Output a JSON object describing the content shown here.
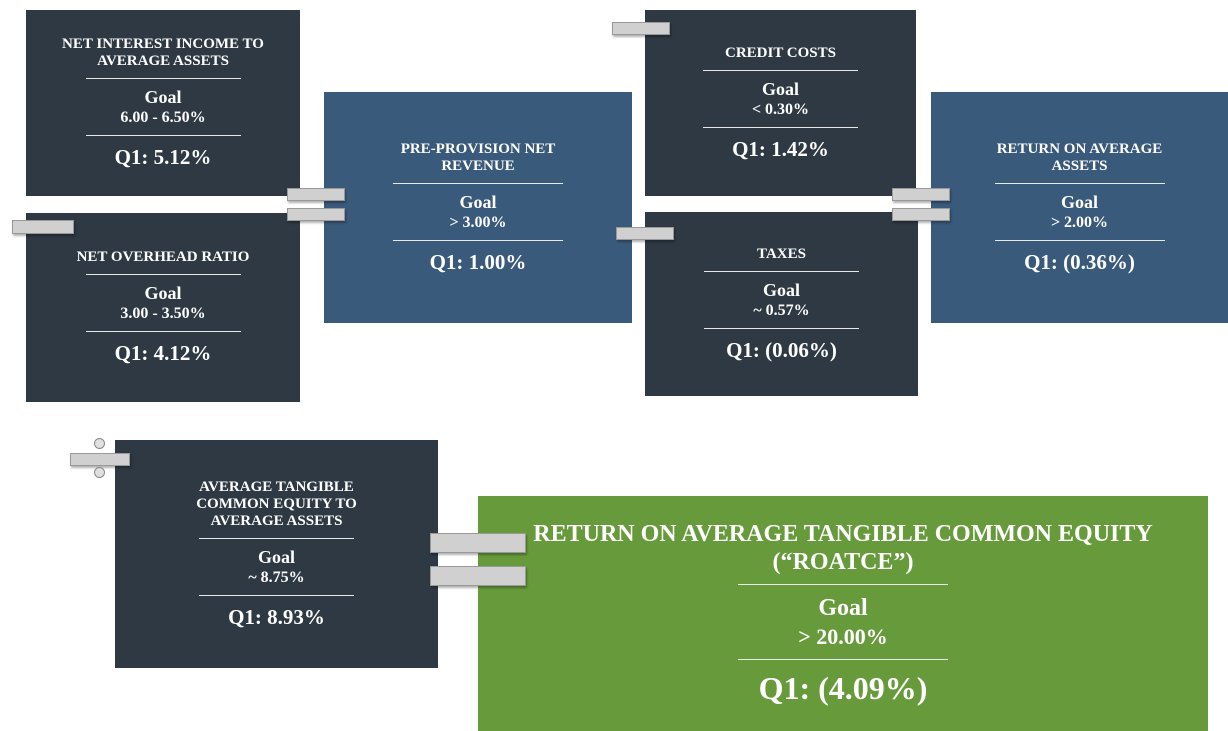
{
  "boxes": [
    {
      "title": "NET INTEREST INCOME TO AVERAGE ASSETS",
      "goal_label": "Goal",
      "goal": "6.00 - 6.50%",
      "result": "Q1: 5.12%"
    },
    {
      "title": "NET OVERHEAD RATIO",
      "goal_label": "Goal",
      "goal": "3.00 - 3.50%",
      "result": "Q1: 4.12%"
    },
    {
      "title": "PRE-PROVISION NET REVENUE",
      "goal_label": "Goal",
      "goal": "> 3.00%",
      "result": "Q1: 1.00%"
    },
    {
      "title": "CREDIT COSTS",
      "goal_label": "Goal",
      "goal": "< 0.30%",
      "result": "Q1: 1.42%"
    },
    {
      "title": "TAXES",
      "goal_label": "Goal",
      "goal": "~ 0.57%",
      "result": "Q1: (0.06%)"
    },
    {
      "title": "RETURN ON AVERAGE ASSETS",
      "goal_label": "Goal",
      "goal": "> 2.00%",
      "result": "Q1: (0.36%)"
    },
    {
      "title": "AVERAGE TANGIBLE COMMON EQUITY TO AVERAGE ASSETS",
      "goal_label": "Goal",
      "goal": "~ 8.75%",
      "result": "Q1: 8.93%"
    },
    {
      "title": "RETURN ON AVERAGE TANGIBLE COMMON EQUITY (“ROATCE”)",
      "goal_label": "Goal",
      "goal": "> 20.00%",
      "result": "Q1: (4.09%)"
    }
  ]
}
